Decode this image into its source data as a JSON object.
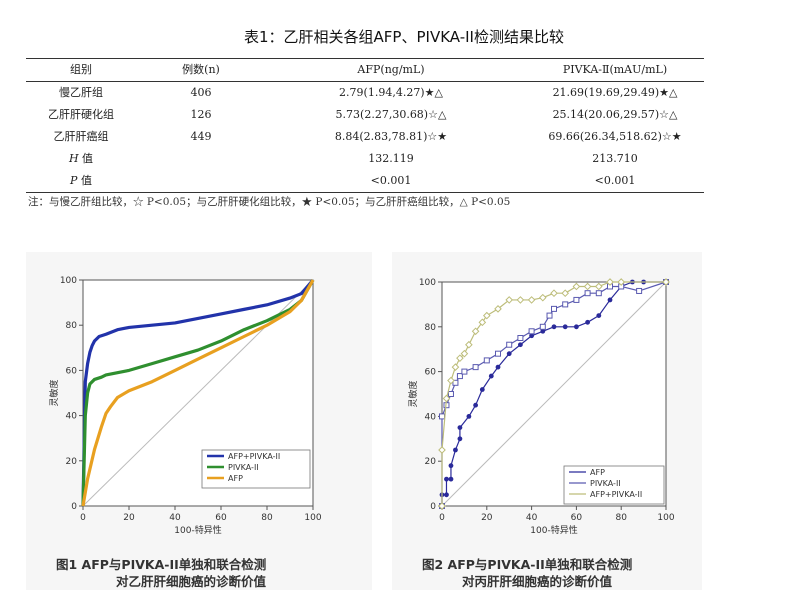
{
  "table": {
    "caption": "表1：乙肝相关各组AFP、PIVKA-II检测结果比较",
    "headers": [
      "组别",
      "例数(n)",
      "AFP(ng/mL)",
      "PIVKA-Ⅱ(mAU/mL)"
    ],
    "rows": [
      [
        "慢乙肝组",
        "406",
        "2.79(1.94,4.27)★△",
        "21.69(19.69,29.49)★△"
      ],
      [
        "乙肝肝硬化组",
        "126",
        "5.73(2.27,30.68)☆△",
        "25.14(20.06,29.57)☆△"
      ],
      [
        "乙肝肝癌组",
        "449",
        "8.84(2.83,78.81)☆★",
        "69.66(26.34,518.62)☆★"
      ]
    ],
    "h_row": {
      "label_italic": "H",
      "label_rest": " 值",
      "afp": "132.119",
      "pivka": "213.710"
    },
    "p_row": {
      "label_italic": "P",
      "label_rest": " 值",
      "afp": "<0.001",
      "pivka": "<0.001"
    },
    "note": "注：与慢乙肝组比较，☆ P<0.05；与乙肝肝硬化组比较，★ P<0.05；与乙肝肝癌组比较，△ P<0.05"
  },
  "figures": [
    {
      "caption_line1": "图1  AFP与PIVKA-II单独和联合检测",
      "caption_line2": "对乙肝肝细胞癌的诊断价值",
      "chart_data": {
        "type": "line",
        "xlabel": "100-特异性",
        "ylabel": "灵敏度",
        "xlim": [
          0,
          100
        ],
        "ylim": [
          0,
          100
        ],
        "xticks": [
          "0",
          "20",
          "40",
          "60",
          "80",
          "100"
        ],
        "yticks": [
          "0",
          "20",
          "40",
          "60",
          "80",
          "100"
        ],
        "legend_position": "bottom-right",
        "series": [
          {
            "name": "AFP+PIVKA-II",
            "color": "#2233aa",
            "x": [
              0,
              1,
              2,
              3,
              4,
              5,
              7,
              10,
              15,
              20,
              30,
              40,
              50,
              60,
              70,
              80,
              90,
              95,
              100
            ],
            "y": [
              0,
              55,
              63,
              68,
              71,
              73,
              75,
              76,
              78,
              79,
              80,
              81,
              83,
              85,
              87,
              89,
              92,
              94,
              100
            ]
          },
          {
            "name": "PIVKA-II",
            "color": "#2f8f2f",
            "x": [
              0,
              1,
              2,
              3,
              5,
              8,
              10,
              15,
              20,
              30,
              40,
              50,
              60,
              70,
              80,
              90,
              95,
              100
            ],
            "y": [
              0,
              40,
              50,
              54,
              56,
              57,
              58,
              59,
              60,
              63,
              66,
              69,
              73,
              78,
              82,
              87,
              91,
              100
            ]
          },
          {
            "name": "AFP",
            "color": "#e8a020",
            "x": [
              0,
              2,
              5,
              8,
              10,
              12,
              15,
              20,
              25,
              30,
              40,
              50,
              60,
              70,
              80,
              90,
              95,
              100
            ],
            "y": [
              0,
              12,
              25,
              35,
              41,
              44,
              48,
              51,
              53,
              55,
              60,
              65,
              70,
              75,
              80,
              86,
              91,
              100
            ]
          }
        ]
      }
    },
    {
      "caption_line1": "图2  AFP与PIVKA-II单独和联合检测",
      "caption_line2": "对丙肝肝细胞癌的诊断价值",
      "chart_data": {
        "type": "line",
        "xlabel": "100-特异性",
        "ylabel": "灵敏度",
        "xlim": [
          0,
          100
        ],
        "ylim": [
          0,
          100
        ],
        "xticks": [
          "0",
          "20",
          "40",
          "60",
          "80",
          "100"
        ],
        "yticks": [
          "0",
          "20",
          "40",
          "60",
          "80",
          "100"
        ],
        "legend_position": "bottom-right",
        "series": [
          {
            "name": "AFP",
            "color": "#2a2a9a",
            "marker": "dot",
            "x": [
              0,
              0,
              2,
              2,
              4,
              4,
              6,
              8,
              8,
              12,
              15,
              18,
              22,
              25,
              30,
              35,
              40,
              45,
              50,
              55,
              60,
              65,
              70,
              75,
              80,
              85,
              90,
              100
            ],
            "y": [
              0,
              5,
              5,
              12,
              12,
              18,
              25,
              30,
              35,
              40,
              45,
              52,
              58,
              62,
              68,
              72,
              76,
              78,
              80,
              80,
              80,
              82,
              85,
              92,
              98,
              100,
              100,
              100
            ]
          },
          {
            "name": "PIVKA-II",
            "color": "#5a5ab0",
            "marker": "square",
            "x": [
              0,
              0,
              2,
              4,
              6,
              8,
              10,
              15,
              20,
              25,
              30,
              35,
              40,
              45,
              48,
              50,
              55,
              60,
              65,
              70,
              75,
              80,
              88,
              100
            ],
            "y": [
              0,
              40,
              45,
              50,
              55,
              58,
              60,
              62,
              65,
              68,
              72,
              75,
              78,
              80,
              85,
              88,
              90,
              92,
              95,
              95,
              98,
              98,
              96,
              100
            ]
          },
          {
            "name": "AFP+PIVKA-II",
            "color": "#bdbd7a",
            "marker": "diamond",
            "x": [
              0,
              0,
              2,
              4,
              6,
              8,
              10,
              12,
              15,
              18,
              20,
              25,
              30,
              35,
              40,
              45,
              50,
              55,
              60,
              65,
              70,
              75,
              80,
              100
            ],
            "y": [
              0,
              25,
              48,
              56,
              62,
              66,
              68,
              72,
              78,
              82,
              85,
              88,
              92,
              92,
              92,
              93,
              95,
              95,
              98,
              98,
              98,
              100,
              100,
              100
            ]
          }
        ]
      }
    }
  ]
}
